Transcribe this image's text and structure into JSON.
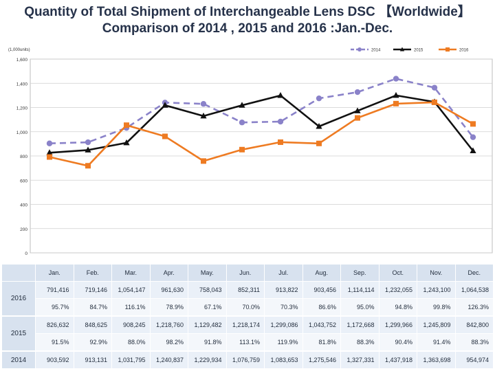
{
  "title": {
    "line1": "Quantity of Total Shipment of Interchangeable Lens DSC 【Worldwide】",
    "line2": "Comparison of 2014 , 2015 and 2016 :Jan.-Dec."
  },
  "colors": {
    "s2014": "#8a82c9",
    "s2015": "#111111",
    "s2016": "#ee7b22",
    "grid": "#cfcfcf"
  },
  "chart_data": {
    "type": "line",
    "units_label": "(1,000units)",
    "categories": [
      "Jan.",
      "Feb.",
      "Mar.",
      "Apr.",
      "May.",
      "Jun.",
      "Jul.",
      "Aug.",
      "Sep.",
      "Oct.",
      "Nov.",
      "Dec."
    ],
    "ylim": [
      0,
      1600
    ],
    "yticks": [
      "0",
      "200",
      "400",
      "600",
      "800",
      "1,000",
      "1,200",
      "1,400",
      "1,600"
    ],
    "ytick_values": [
      0,
      200,
      400,
      600,
      800,
      1000,
      1200,
      1400,
      1600
    ],
    "series": [
      {
        "name": "2014",
        "color": "#8a82c9",
        "style": "dashed",
        "marker": "circle",
        "values": [
          903.592,
          913.131,
          1031.795,
          1240.837,
          1229.934,
          1076.759,
          1083.653,
          1275.546,
          1327.331,
          1437.918,
          1363.698,
          954.974
        ]
      },
      {
        "name": "2015",
        "color": "#111111",
        "style": "solid",
        "marker": "triangle",
        "values": [
          826.632,
          848.625,
          908.245,
          1218.76,
          1129.482,
          1218.174,
          1299.086,
          1043.752,
          1172.668,
          1299.966,
          1245.809,
          842.8
        ]
      },
      {
        "name": "2016",
        "color": "#ee7b22",
        "style": "solid",
        "marker": "square",
        "values": [
          791.416,
          719.146,
          1054.147,
          961.63,
          758.043,
          852.311,
          913.822,
          903.456,
          1114.114,
          1232.055,
          1243.1,
          1064.538
        ]
      }
    ]
  },
  "table": {
    "months": [
      "Jan.",
      "Feb.",
      "Mar.",
      "Apr.",
      "May.",
      "Jun.",
      "Jul.",
      "Aug.",
      "Sep.",
      "Oct.",
      "Nov.",
      "Dec."
    ],
    "rows": [
      {
        "year": "2016",
        "values": [
          "791,416",
          "719,146",
          "1,054,147",
          "961,630",
          "758,043",
          "852,311",
          "913,822",
          "903,456",
          "1,114,114",
          "1,232,055",
          "1,243,100",
          "1,064,538"
        ],
        "percents": [
          "95.7%",
          "84.7%",
          "116.1%",
          "78.9%",
          "67.1%",
          "70.0%",
          "70.3%",
          "86.6%",
          "95.0%",
          "94.8%",
          "99.8%",
          "126.3%"
        ]
      },
      {
        "year": "2015",
        "values": [
          "826,632",
          "848,625",
          "908,245",
          "1,218,760",
          "1,129,482",
          "1,218,174",
          "1,299,086",
          "1,043,752",
          "1,172,668",
          "1,299,966",
          "1,245,809",
          "842,800"
        ],
        "percents": [
          "91.5%",
          "92.9%",
          "88.0%",
          "98.2%",
          "91.8%",
          "113.1%",
          "119.9%",
          "81.8%",
          "88.3%",
          "90.4%",
          "91.4%",
          "88.3%"
        ]
      },
      {
        "year": "2014",
        "values": [
          "903,592",
          "913,131",
          "1,031,795",
          "1,240,837",
          "1,229,934",
          "1,076,759",
          "1,083,653",
          "1,275,546",
          "1,327,331",
          "1,437,918",
          "1,363,698",
          "954,974"
        ]
      }
    ]
  }
}
